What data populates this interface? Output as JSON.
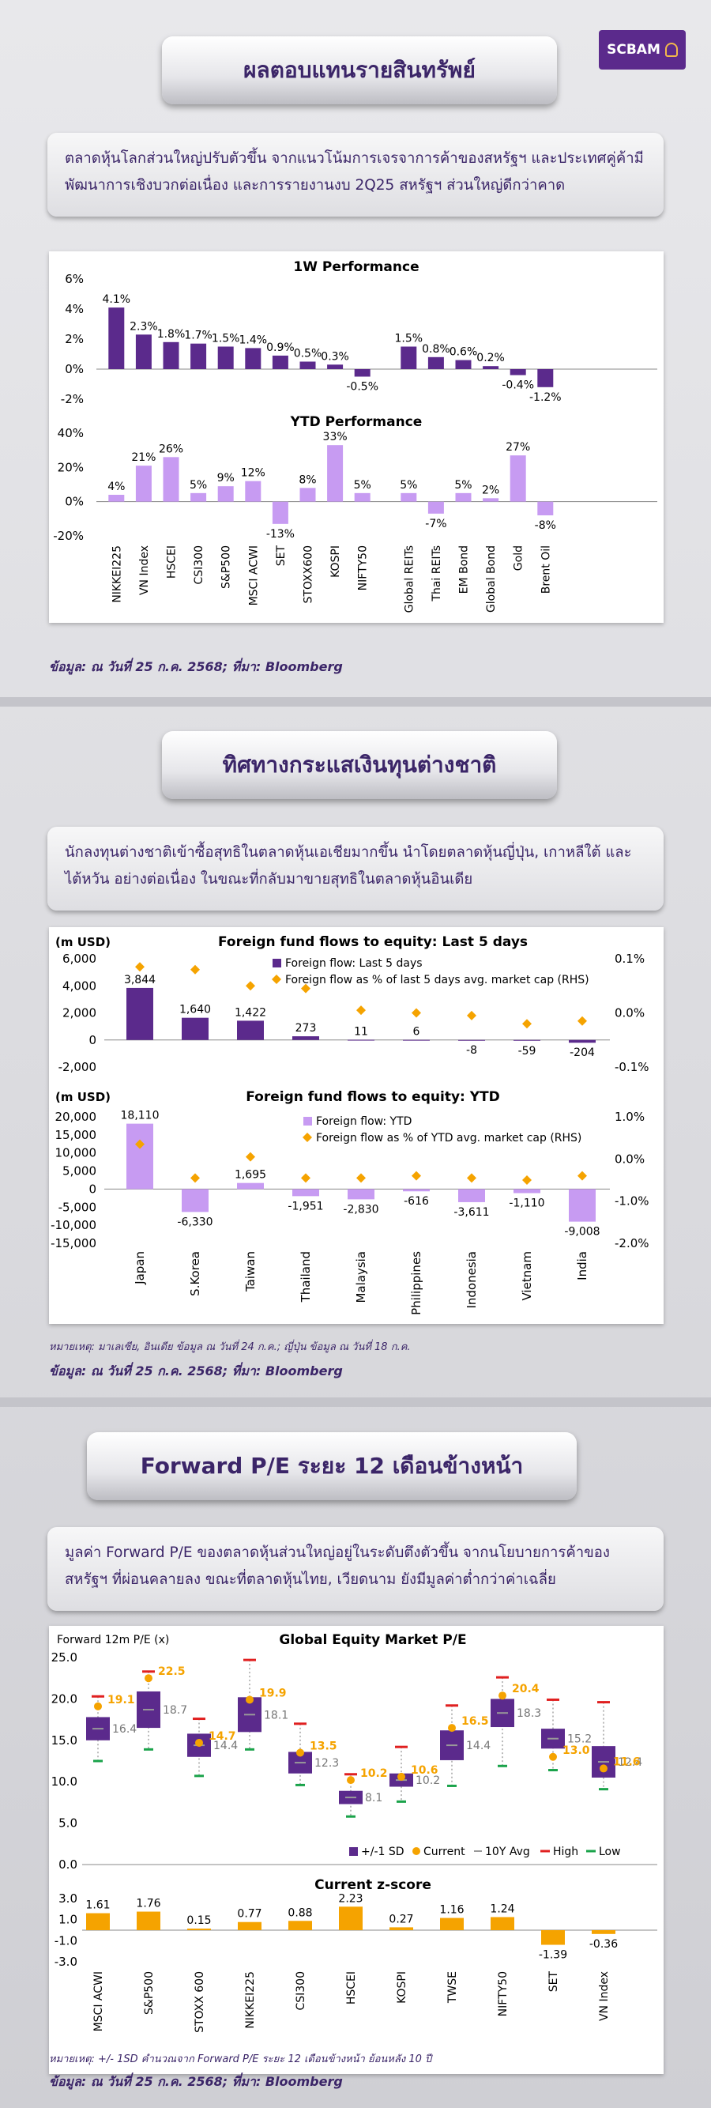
{
  "brand": {
    "logo_text": "SCBAM"
  },
  "section1": {
    "title": "ผลตอบแทนรายสินทรัพย์",
    "desc": "ตลาดหุ้นโลกส่วนใหญ่ปรับตัวขึ้น จากแนวโน้มการเจรจาการค้าของสหรัฐฯ และประเทศคู่ค้ามีพัฒนาการเชิงบวกต่อเนื่อง และการรายงานงบ 2Q25 สหรัฐฯ ส่วนใหญ่ดีกว่าคาด",
    "source": "ข้อมูล: ณ วันที่ 25 ก.ค. 2568; ที่มา: Bloomberg"
  },
  "section2": {
    "title": "ทิศทางกระแสเงินทุนต่างชาติ",
    "desc": "นักลงทุนต่างชาติเข้าซื้อสุทธิในตลาดหุ้นเอเชียมากขึ้น นำโดยตลาดหุ้นญี่ปุ่น, เกาหลีใต้ และไต้หวัน อย่างต่อเนื่อง ในขณะที่กลับมาขายสุทธิในตลาดหุ้นอินเดีย",
    "note": "หมายเหตุ: มาเลเซีย, อินเดีย ข้อมูล ณ วันที่ 24 ก.ค.; ญี่ปุ่น ข้อมูล ณ วันที่ 18 ก.ค.",
    "source": "ข้อมูล: ณ วันที่ 25 ก.ค. 2568; ที่มา: Bloomberg"
  },
  "section3": {
    "title": "Forward P/E ระยะ 12 เดือนข้างหน้า",
    "desc": "มูลค่า Forward P/E ของตลาดหุ้นส่วนใหญ่อยู่ในระดับตึงตัวขึ้น จากนโยบายการค้าของสหรัฐฯ ที่ผ่อนคลายลง ขณะที่ตลาดหุ้นไทย, เวียดนาม ยังมีมูลค่าต่ำกว่าค่าเฉลี่ย",
    "note": "หมายเหตุ: +/- 1SD คำนวณจาก Forward P/E ระยะ 12 เดือนข้างหน้า ย้อนหลัง 10 ปี",
    "source": "ข้อมูล: ณ วันที่ 25 ก.ค. 2568; ที่มา: Bloomberg"
  },
  "colors": {
    "purple_dark": "#5b2a8c",
    "purple_light": "#c79bf2",
    "orange": "#f5a300",
    "red": "#e02020",
    "green": "#1aa34a",
    "brand": "#3b2568"
  },
  "chart_data": [
    {
      "type": "bar",
      "title": "1W Performance",
      "ylim": [
        -2,
        6
      ],
      "yticks": [
        "6%",
        "4%",
        "2%",
        "0%",
        "-2%"
      ],
      "categories": [
        "NIKKEI225",
        "VN Index",
        "HSCEI",
        "CSI300",
        "S&P500",
        "MSCI ACWI",
        "SET",
        "STOXX600",
        "KOSPI",
        "NIFTY50",
        "Global REITs",
        "Thai REITs",
        "EM Bond",
        "Global Bond",
        "Gold",
        "Brent Oil"
      ],
      "values": [
        4.1,
        2.3,
        1.8,
        1.7,
        1.5,
        1.4,
        0.9,
        0.5,
        0.3,
        -0.5,
        1.5,
        0.8,
        0.6,
        0.2,
        -0.4,
        -1.2
      ],
      "labels": [
        "4.1%",
        "2.3%",
        "1.8%",
        "1.7%",
        "1.5%",
        "1.4%",
        "0.9%",
        "0.5%",
        "0.3%",
        "-0.5%",
        "1.5%",
        "0.8%",
        "0.6%",
        "0.2%",
        "-0.4%",
        "-1.2%"
      ]
    },
    {
      "type": "bar",
      "title": "YTD Performance",
      "ylim": [
        -20,
        40
      ],
      "yticks": [
        "40%",
        "20%",
        "0%",
        "-20%"
      ],
      "categories": [
        "NIKKEI225",
        "VN Index",
        "HSCEI",
        "CSI300",
        "S&P500",
        "MSCI ACWI",
        "SET",
        "STOXX600",
        "KOSPI",
        "NIFTY50",
        "Global REITs",
        "Thai REITs",
        "EM Bond",
        "Global Bond",
        "Gold",
        "Brent Oil"
      ],
      "values": [
        4,
        21,
        26,
        5,
        9,
        12,
        -13,
        8,
        33,
        5,
        5,
        -7,
        5,
        2,
        27,
        -8
      ],
      "labels": [
        "4%",
        "21%",
        "26%",
        "5%",
        "9%",
        "12%",
        "-13%",
        "8%",
        "33%",
        "5%",
        "5%",
        "-7%",
        "5%",
        "2%",
        "27%",
        "-8%"
      ]
    },
    {
      "type": "bar",
      "title": "Foreign fund flows to equity: Last 5 days",
      "ylabel": "(m USD)",
      "ylim": [
        -2000,
        6000
      ],
      "yticks": [
        "6,000",
        "4,000",
        "2,000",
        "0",
        "-2,000"
      ],
      "y2ticks": [
        "0.1%",
        "0.0%",
        "-0.1%"
      ],
      "y2lim": [
        -0.1,
        0.1
      ],
      "categories": [
        "Japan",
        "S.Korea",
        "Taiwan",
        "Thailand",
        "Malaysia",
        "Philippines",
        "Indonesia",
        "Vietnam",
        "India"
      ],
      "series": [
        {
          "name": "Foreign flow: Last 5 days",
          "values": [
            3844,
            1640,
            1422,
            273,
            11,
            6,
            -8,
            -59,
            -204
          ],
          "labels": [
            "3,844",
            "1,640",
            "1,422",
            "273",
            "11",
            "6",
            "-8",
            "-59",
            "-204"
          ]
        },
        {
          "name": "Foreign flow as % of last 5 days avg. market cap (RHS)",
          "values": [
            0.085,
            0.08,
            0.05,
            0.045,
            0.005,
            0.0,
            -0.005,
            -0.02,
            -0.015
          ]
        }
      ]
    },
    {
      "type": "bar",
      "title": "Foreign fund flows to equity: YTD",
      "ylabel": "(m USD)",
      "ylim": [
        -15000,
        20000
      ],
      "yticks": [
        "20,000",
        "15,000",
        "10,000",
        "5,000",
        "0",
        "-5,000",
        "-10,000",
        "-15,000"
      ],
      "y2ticks": [
        "1.0%",
        "0.0%",
        "-1.0%",
        "-2.0%"
      ],
      "y2lim": [
        -2.0,
        1.0
      ],
      "categories": [
        "Japan",
        "S.Korea",
        "Taiwan",
        "Thailand",
        "Malaysia",
        "Philippines",
        "Indonesia",
        "Vietnam",
        "India"
      ],
      "series": [
        {
          "name": "Foreign flow: YTD",
          "values": [
            18110,
            -6330,
            1695,
            -1951,
            -2830,
            -616,
            -3611,
            -1110,
            -9008
          ],
          "labels": [
            "18,110",
            "-6,330",
            "1,695",
            "-1,951",
            "-2,830",
            "-616",
            "-3,611",
            "-1,110",
            "-9,008"
          ]
        },
        {
          "name": "Foreign flow as % of YTD avg. market cap (RHS)",
          "values": [
            0.35,
            -0.45,
            0.05,
            -0.45,
            -0.45,
            -0.4,
            -0.45,
            -0.5,
            -0.4
          ]
        }
      ]
    },
    {
      "type": "box",
      "title": "Global Equity Market P/E",
      "ylabel": "Forward 12m P/E (x)",
      "ylim": [
        0,
        25
      ],
      "yticks": [
        "25.0",
        "20.0",
        "15.0",
        "10.0",
        "5.0",
        "0.0"
      ],
      "legend": [
        "+/-1 SD",
        "Current",
        "10Y Avg",
        "High",
        "Low"
      ],
      "categories": [
        "MSCI ACWI",
        "S&P500",
        "STOXX 600",
        "NIKKEI225",
        "CSI300",
        "HSCEI",
        "KOSPI",
        "TWSE",
        "NIFTY50",
        "SET",
        "VN Index"
      ],
      "avg": [
        16.4,
        18.7,
        14.4,
        18.1,
        12.3,
        8.1,
        10.2,
        14.4,
        18.3,
        15.2,
        12.4
      ],
      "current": [
        19.1,
        22.5,
        14.7,
        19.9,
        13.5,
        10.2,
        10.6,
        16.5,
        20.4,
        13.0,
        11.6
      ],
      "sd_low": [
        15.0,
        16.5,
        13.0,
        16.0,
        11.0,
        7.3,
        9.4,
        12.6,
        16.6,
        14.0,
        10.5
      ],
      "sd_high": [
        17.8,
        20.9,
        15.8,
        20.2,
        13.6,
        8.9,
        11.0,
        16.2,
        20.0,
        16.4,
        14.3
      ],
      "high": [
        20.3,
        23.3,
        17.6,
        24.7,
        17.0,
        10.9,
        14.2,
        19.2,
        22.6,
        19.9,
        19.6
      ],
      "low": [
        12.5,
        13.9,
        10.7,
        13.9,
        9.6,
        5.8,
        7.6,
        9.5,
        11.9,
        11.4,
        9.1
      ],
      "avg_labels": [
        "16.4",
        "18.7",
        "14.4",
        "18.1",
        "12.3",
        "8.1",
        "10.2",
        "14.4",
        "18.3",
        "15.2",
        "12.4"
      ],
      "current_labels": [
        "19.1",
        "22.5",
        "14.7",
        "19.9",
        "13.5",
        "10.2",
        "10.6",
        "16.5",
        "20.4",
        "13.0",
        "11.6"
      ]
    },
    {
      "type": "bar",
      "title": "Current z-score",
      "ylim": [
        -3.0,
        3.0
      ],
      "yticks": [
        "3.0",
        "1.0",
        "-1.0",
        "-3.0"
      ],
      "categories": [
        "MSCI ACWI",
        "S&P500",
        "STOXX 600",
        "NIKKEI225",
        "CSI300",
        "HSCEI",
        "KOSPI",
        "TWSE",
        "NIFTY50",
        "SET",
        "VN Index"
      ],
      "values": [
        1.61,
        1.76,
        0.15,
        0.77,
        0.88,
        2.23,
        0.27,
        1.16,
        1.24,
        -1.39,
        -0.36
      ],
      "labels": [
        "1.61",
        "1.76",
        "0.15",
        "0.77",
        "0.88",
        "2.23",
        "0.27",
        "1.16",
        "1.24",
        "-1.39",
        "-0.36"
      ]
    }
  ]
}
